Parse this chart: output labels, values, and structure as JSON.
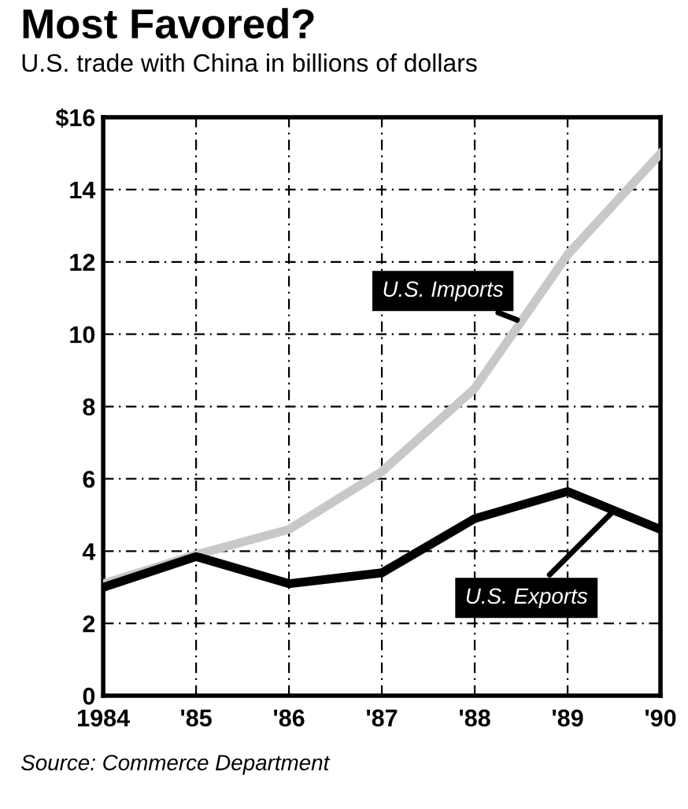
{
  "chart_data": {
    "type": "line",
    "title": "Most Favored?",
    "subtitle": "U.S. trade with China in billions of dollars",
    "x": [
      1984,
      1985,
      1986,
      1987,
      1988,
      1989,
      1990
    ],
    "series": [
      {
        "name": "U.S. Imports",
        "color": "#c8c8c8",
        "values": [
          3.1,
          3.9,
          4.6,
          6.2,
          8.5,
          12.2,
          15.0
        ]
      },
      {
        "name": "U.S. Exports",
        "color": "#000000",
        "values": [
          3.0,
          3.85,
          3.1,
          3.4,
          4.9,
          5.65,
          4.6
        ]
      }
    ],
    "xlim": [
      1984,
      1990
    ],
    "xticks": [
      1984,
      {
        "value": 1985,
        "label": "'85"
      },
      {
        "value": 1986,
        "label": "'86"
      },
      {
        "value": 1987,
        "label": "'87"
      },
      {
        "value": 1988,
        "label": "'88"
      },
      {
        "value": 1989,
        "label": "'89"
      },
      {
        "value": 1990,
        "label": "'90"
      }
    ],
    "ylim": [
      0,
      16
    ],
    "yticks": [
      0,
      2,
      4,
      6,
      8,
      10,
      12,
      14,
      {
        "value": 16,
        "label": "$16"
      }
    ],
    "grid": true,
    "legend": false,
    "marker": "none",
    "line_style": "solid",
    "annotations": [
      "Source: Commerce Department"
    ]
  }
}
